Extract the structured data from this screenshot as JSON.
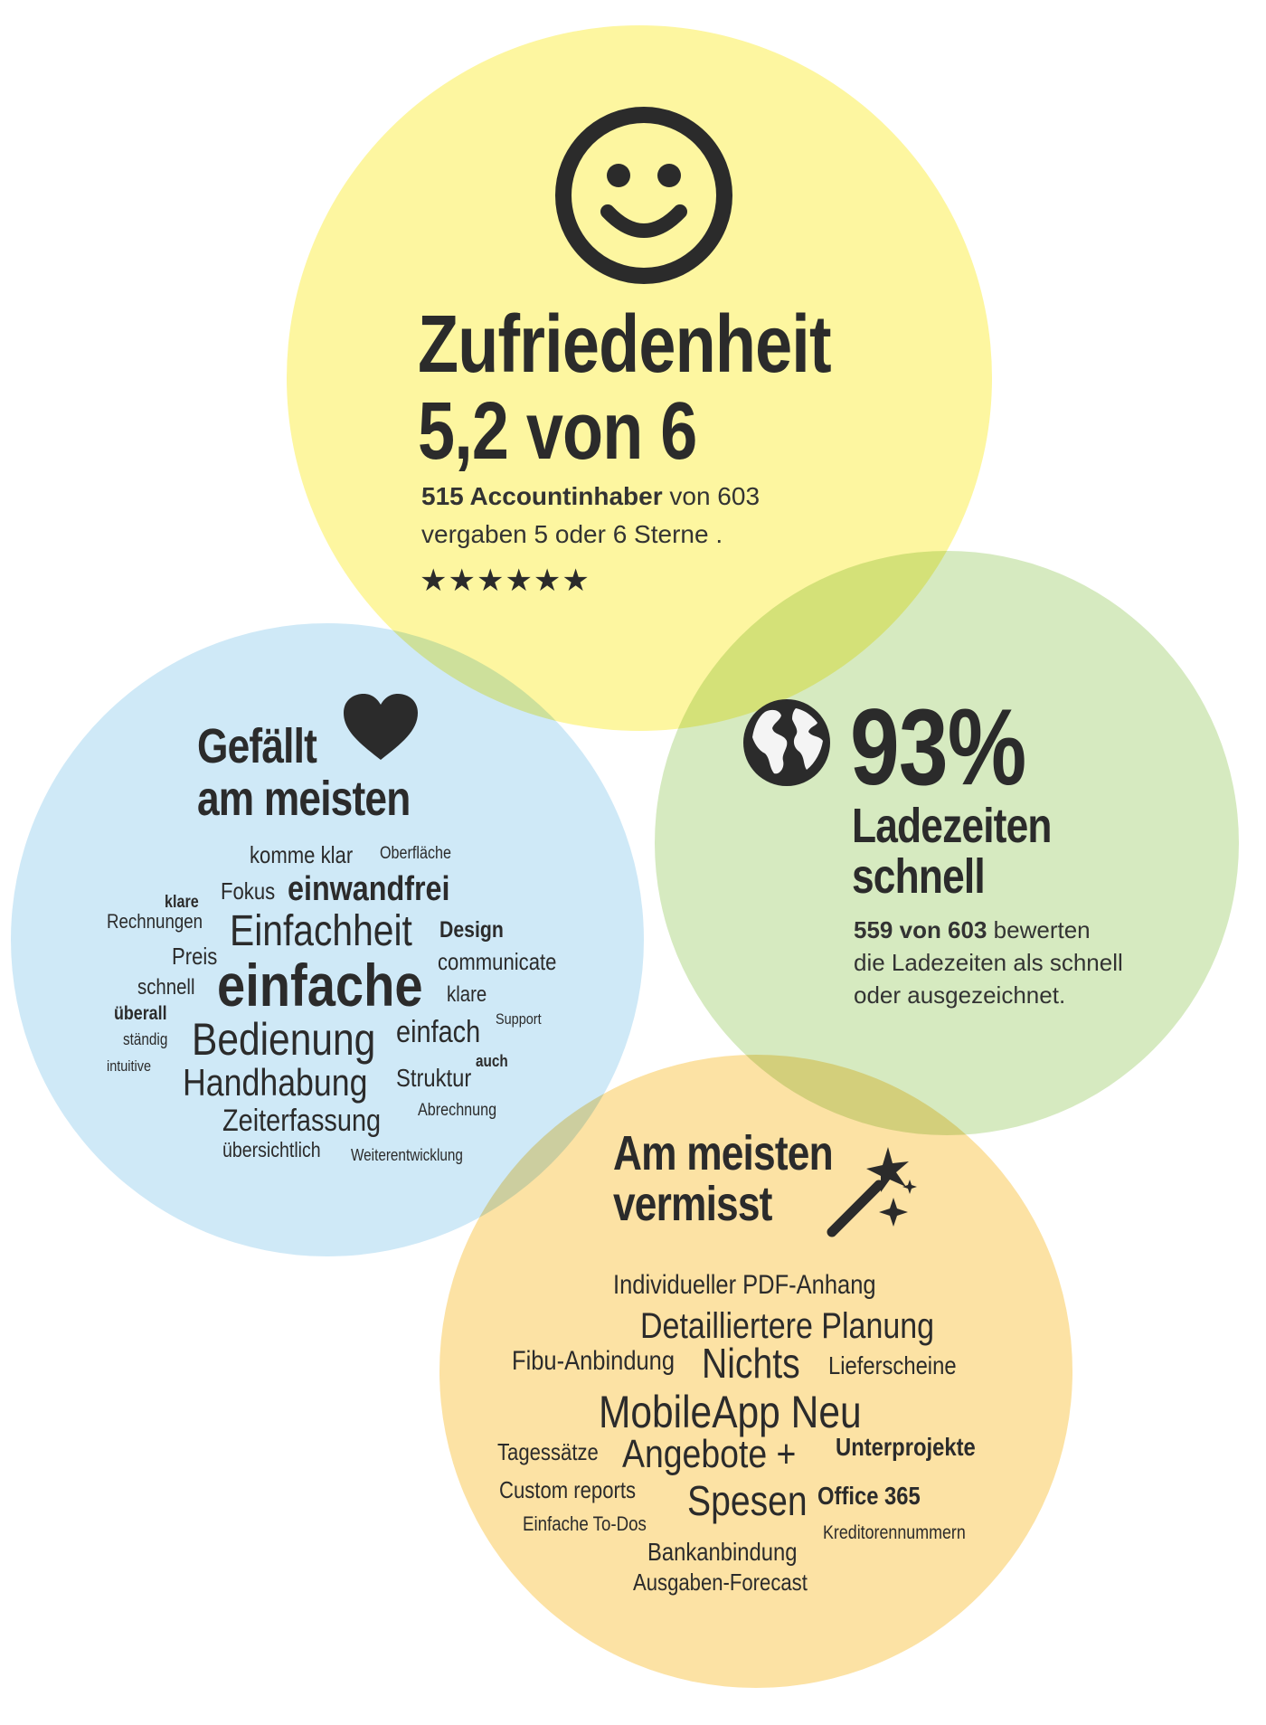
{
  "colors": {
    "yellow": "#fdf6a0",
    "blue": "#cfe9f7",
    "green": "#d6eac0",
    "orange": "#fce2a4",
    "text": "#2b2b2b"
  },
  "satisfaction": {
    "icon": "smiley-icon",
    "title_line1": "Zufriedenheit",
    "title_line2": "5,2 von 6",
    "text_bold": "515 Accountinhaber",
    "text_rest1": " von 603",
    "text_line2": "vergaben 5 oder 6 Sterne .",
    "stars": "★★★★★★",
    "star_rating": 6
  },
  "likes": {
    "icon": "heart-icon",
    "title_line1": "Gefällt",
    "title_line2": "am meisten",
    "words": [
      {
        "text": "komme klar"
      },
      {
        "text": "Oberfläche"
      },
      {
        "text": "klare"
      },
      {
        "text": "Fokus"
      },
      {
        "text": "einwandfrei"
      },
      {
        "text": "Rechnungen"
      },
      {
        "text": "Einfachheit"
      },
      {
        "text": "Design"
      },
      {
        "text": "Preis"
      },
      {
        "text": "communicate"
      },
      {
        "text": "schnell"
      },
      {
        "text": "einfache"
      },
      {
        "text": "klare"
      },
      {
        "text": "überall"
      },
      {
        "text": "Support"
      },
      {
        "text": "ständig"
      },
      {
        "text": "Bedienung"
      },
      {
        "text": "einfach"
      },
      {
        "text": "auch"
      },
      {
        "text": "intuitive"
      },
      {
        "text": "Handhabung"
      },
      {
        "text": "Struktur"
      },
      {
        "text": "Abrechnung"
      },
      {
        "text": "Zeiterfassung"
      },
      {
        "text": "übersichtlich"
      },
      {
        "text": "Weiterentwicklung"
      }
    ]
  },
  "speed": {
    "icon": "globe-icon",
    "percent": "93%",
    "title_line1": "Ladezeiten",
    "title_line2": "schnell",
    "text_bold": "559 von 603",
    "text_rest1": " bewerten",
    "text_line2": "die Ladezeiten als schnell",
    "text_line3": "oder ausgezeichnet."
  },
  "missing": {
    "icon": "magic-wand-icon",
    "title_line1": "Am meisten",
    "title_line2": "vermisst",
    "words": [
      {
        "text": "Individueller PDF-Anhang"
      },
      {
        "text": "Detailliertere Planung"
      },
      {
        "text": "Fibu-Anbindung"
      },
      {
        "text": "Nichts"
      },
      {
        "text": "Lieferscheine"
      },
      {
        "text": "MobileApp Neu"
      },
      {
        "text": "Tagessätze"
      },
      {
        "text": "Angebote +"
      },
      {
        "text": "Unterprojekte"
      },
      {
        "text": "Custom reports"
      },
      {
        "text": "Spesen"
      },
      {
        "text": "Office 365"
      },
      {
        "text": "Einfache To-Dos"
      },
      {
        "text": "Kreditorennummern"
      },
      {
        "text": "Bankanbindung"
      },
      {
        "text": "Ausgaben-Forecast"
      }
    ]
  }
}
